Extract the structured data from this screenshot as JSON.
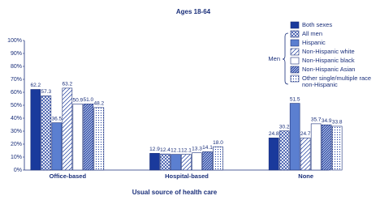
{
  "chart_data": {
    "type": "bar",
    "title": "Ages 18-64",
    "x_label": "Usual source of health care",
    "legend_group_label": "Men",
    "categories": [
      "Office-based",
      "Hospital-based",
      "None"
    ],
    "series": [
      {
        "name": "Both sexes",
        "color": "#1a3a9c",
        "pattern": "solid",
        "values": [
          62.2,
          12.9,
          24.8
        ],
        "value_labels": [
          "62.2",
          "12.9",
          "24.8"
        ]
      },
      {
        "name": "All men",
        "color": "#1a3a9c",
        "pattern": "crosshatch",
        "values": [
          57.3,
          12.4,
          30.2
        ],
        "value_labels": [
          "57.3",
          "12.4",
          "30.2"
        ]
      },
      {
        "name": "Hispanic",
        "color": "#5b7fd0",
        "pattern": "solid",
        "values": [
          36.5,
          12.1,
          51.5
        ],
        "value_labels": [
          "36.5",
          "12.1",
          "51.5"
        ]
      },
      {
        "name": "Non-Hispanic white",
        "color": "#1a3a9c",
        "pattern": "stripes",
        "values": [
          63.2,
          12.1,
          24.7
        ],
        "value_labels": [
          "63.2",
          "12.1",
          "24.7"
        ]
      },
      {
        "name": "Non-Hispanic black",
        "color": "#ffffff",
        "pattern": "solid",
        "values": [
          50.9,
          13.3,
          35.7
        ],
        "value_labels": [
          "50.9",
          "13.3",
          "35.7"
        ]
      },
      {
        "name": "Non-Hispanic Asian",
        "color": "#1a3a9c",
        "pattern": "densehatch",
        "values": [
          51.0,
          14.1,
          34.9
        ],
        "value_labels": [
          "51.0",
          "14.1",
          "34.9"
        ]
      },
      {
        "name": "Other single/multiple race non-Hispanic",
        "color": "#1a3a9c",
        "pattern": "dots",
        "values": [
          48.2,
          18.0,
          33.8
        ],
        "value_labels": [
          "48.2",
          "18.0",
          "33.8"
        ]
      }
    ],
    "ylim": [
      0,
      100
    ],
    "yticks": [
      {
        "value": 0,
        "label": "0%"
      },
      {
        "value": 10,
        "label": "10%"
      },
      {
        "value": 20,
        "label": "20%"
      },
      {
        "value": 30,
        "label": "30%"
      },
      {
        "value": 40,
        "label": "40%"
      },
      {
        "value": 50,
        "label": "50%"
      },
      {
        "value": 60,
        "label": "60%"
      },
      {
        "value": 70,
        "label": "70%"
      },
      {
        "value": 80,
        "label": "80%"
      },
      {
        "value": 90,
        "label": "90%"
      },
      {
        "value": 100,
        "label": "100%"
      }
    ],
    "grid": false
  }
}
